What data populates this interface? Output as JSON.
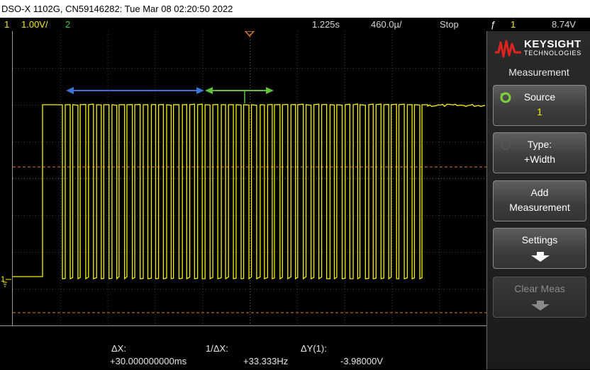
{
  "title_bar": {
    "text": "DSO-X 1102G, CN59146282: Tue Mar 08 02:20:50 2022"
  },
  "status_bar": {
    "ch1_number": "1",
    "ch1_scale": "1.00V/",
    "ch2_number": "2",
    "horizontal_position": "1.225s",
    "time_scale": "460.0µ/",
    "run_state": "Stop",
    "trigger_slope": "ƒ",
    "trigger_source": "1",
    "trigger_level": "8.74V"
  },
  "screen_markers": {
    "trigger_marker": "T",
    "ch1_ground_marker": "1"
  },
  "measurements": {
    "dx_label": "ΔX:",
    "dx_value": "+30.000000000ms",
    "inv_dx_label": "1/ΔX:",
    "inv_dx_value": "+33.333Hz",
    "dy_label": "ΔY(1):",
    "dy_value": "-3.98000V"
  },
  "sidebar": {
    "logo_line1": "KEYSIGHT",
    "logo_line2": "TECHNOLOGIES",
    "menu_title": "Measurement",
    "softkeys": [
      {
        "line1": "Source",
        "line2": "1",
        "icon": "rotate-knob-icon"
      },
      {
        "line1": "Type:",
        "line2": "+Width",
        "icon": "rotate-knob-icon"
      },
      {
        "line1": "Add",
        "line2": "Measurement"
      },
      {
        "line1": "Settings",
        "icon": "arrow-down-icon"
      },
      {
        "line1": "Clear Meas",
        "icon": "arrow-down-icon",
        "disabled": true
      }
    ]
  },
  "colors": {
    "ch1": "#f5f000",
    "ch2": "#3cd23c",
    "cursor_a": "#3a74d8",
    "cursor_b": "#5fbf3f",
    "reference_line": "#e07a2a",
    "grid": "#3a3a3a"
  },
  "waveform": {
    "channel": "1",
    "pulse_count": 47,
    "high_level_v": 0.0,
    "low_level_v": -3.98
  }
}
